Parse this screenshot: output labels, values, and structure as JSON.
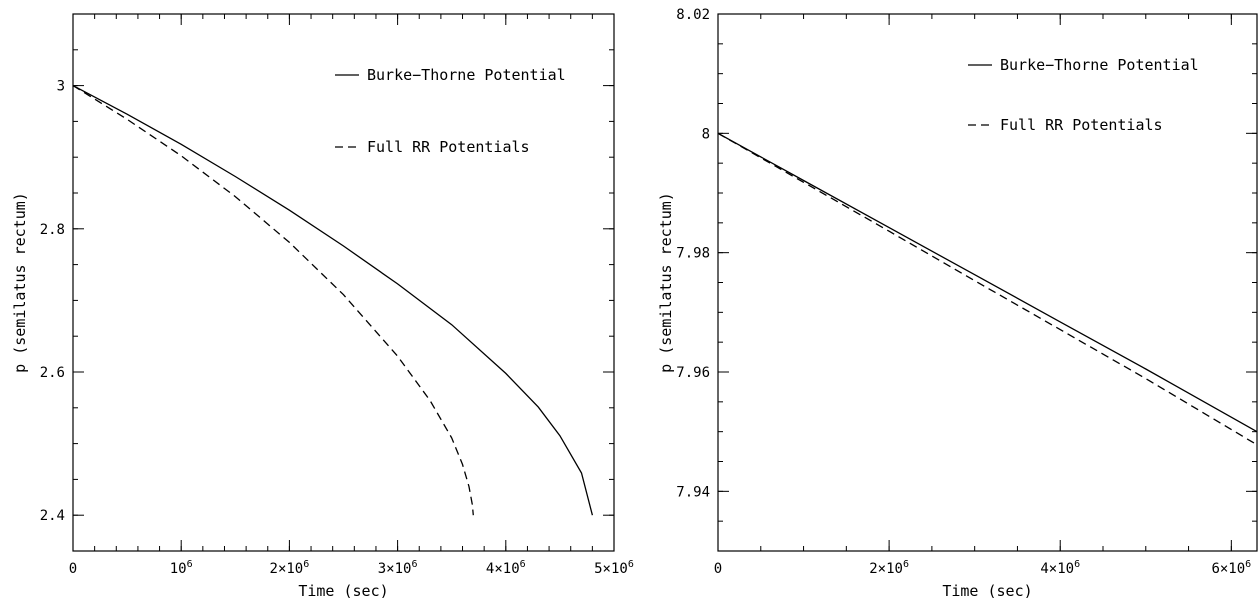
{
  "chart_data": [
    {
      "type": "line",
      "title": "",
      "xlabel": "Time (sec)",
      "ylabel": "p (semilatus rectum)",
      "xlim": [
        0,
        5000000
      ],
      "ylim": [
        2.35,
        3.1
      ],
      "x_ticks": [
        {
          "value": 0,
          "label": "0"
        },
        {
          "value": 1000000,
          "label": "10^6"
        },
        {
          "value": 2000000,
          "label": "2×10^6"
        },
        {
          "value": 3000000,
          "label": "3×10^6"
        },
        {
          "value": 4000000,
          "label": "4×10^6"
        },
        {
          "value": 5000000,
          "label": "5×10^6"
        }
      ],
      "x_minor_step": 200000,
      "y_ticks": [
        {
          "value": 2.4,
          "label": "2.4"
        },
        {
          "value": 2.6,
          "label": "2.6"
        },
        {
          "value": 2.8,
          "label": "2.8"
        },
        {
          "value": 3.0,
          "label": "3"
        }
      ],
      "y_minor_step": 0.05,
      "grid": false,
      "legend_position": "top-right",
      "series": [
        {
          "name": "Burke−Thorne Potential",
          "style": "solid",
          "x": [
            0,
            500000,
            1000000,
            1500000,
            2000000,
            2500000,
            3000000,
            3500000,
            4000000,
            4300000,
            4500000,
            4700000,
            4800000
          ],
          "y": [
            3.0,
            2.96,
            2.918,
            2.873,
            2.826,
            2.776,
            2.723,
            2.666,
            2.598,
            2.551,
            2.511,
            2.459,
            2.4
          ]
        },
        {
          "name": "Full RR Potentials",
          "style": "dashed",
          "x": [
            0,
            500000,
            1000000,
            1500000,
            2000000,
            2500000,
            3000000,
            3300000,
            3500000,
            3600000,
            3660000,
            3690000,
            3700000
          ],
          "y": [
            3.0,
            2.953,
            2.902,
            2.845,
            2.781,
            2.708,
            2.622,
            2.56,
            2.508,
            2.471,
            2.44,
            2.415,
            2.4
          ]
        }
      ]
    },
    {
      "type": "line",
      "title": "",
      "xlabel": "Time (sec)",
      "ylabel": "p (semilatus rectum)",
      "xlim": [
        0,
        6300000
      ],
      "ylim": [
        7.93,
        8.02
      ],
      "x_ticks": [
        {
          "value": 0,
          "label": "0"
        },
        {
          "value": 2000000,
          "label": "2×10^6"
        },
        {
          "value": 4000000,
          "label": "4×10^6"
        },
        {
          "value": 6000000,
          "label": "6×10^6"
        }
      ],
      "x_minor_step": 500000,
      "y_ticks": [
        {
          "value": 7.94,
          "label": "7.94"
        },
        {
          "value": 7.96,
          "label": "7.96"
        },
        {
          "value": 7.98,
          "label": "7.98"
        },
        {
          "value": 8.0,
          "label": "8"
        },
        {
          "value": 8.02,
          "label": "8.02"
        }
      ],
      "y_minor_step": 0.005,
      "grid": false,
      "legend_position": "top-right",
      "series": [
        {
          "name": "Burke−Thorne Potential",
          "style": "solid",
          "x": [
            0,
            1000000,
            2000000,
            3000000,
            4000000,
            5000000,
            6300000
          ],
          "y": [
            8.0,
            7.9921,
            7.9842,
            7.9763,
            7.9684,
            7.9605,
            7.95
          ]
        },
        {
          "name": "Full RR Potentials",
          "style": "dashed",
          "x": [
            0,
            1000000,
            2000000,
            3000000,
            4000000,
            5000000,
            6300000
          ],
          "y": [
            8.0,
            7.9918,
            7.9836,
            7.9753,
            7.9671,
            7.9589,
            7.9478
          ]
        }
      ]
    }
  ]
}
